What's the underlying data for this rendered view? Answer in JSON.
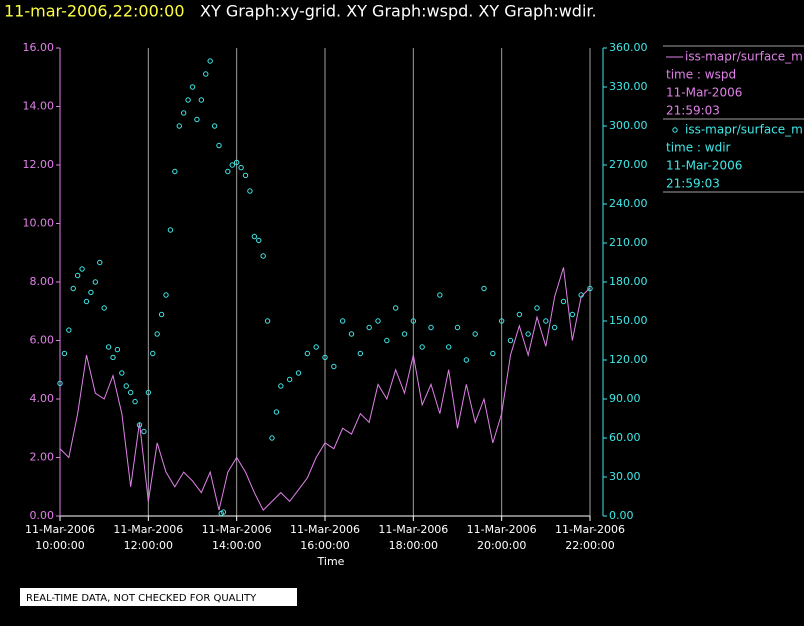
{
  "chart_data": {
    "type": "line-scatter",
    "title": "11-mar-2006,22:00:00",
    "subtitle": "XY Graph:xy-grid.  XY Graph:wspd.  XY Graph:wdir.",
    "xlabel": "Time",
    "note": "REAL-TIME DATA, NOT CHECKED FOR QUALITY",
    "xlim": [
      10,
      22
    ],
    "xticks": [
      {
        "value": 10,
        "label": "11-Mar-2006 10:00:00"
      },
      {
        "value": 12,
        "label": "11-Mar-2006 12:00:00"
      },
      {
        "value": 14,
        "label": "11-Mar-2006 14:00:00"
      },
      {
        "value": 16,
        "label": "11-Mar-2006 16:00:00"
      },
      {
        "value": 18,
        "label": "11-Mar-2006 18:00:00"
      },
      {
        "value": 20,
        "label": "11-Mar-2006 20:00:00"
      },
      {
        "value": 22,
        "label": "11-Mar-2006 22:00:00"
      }
    ],
    "ylim": [
      0,
      16
    ],
    "yticks": [
      {
        "value": 0,
        "label": "0.00"
      },
      {
        "value": 2,
        "label": "2.00"
      },
      {
        "value": 4,
        "label": "4.00"
      },
      {
        "value": 6,
        "label": "6.00"
      },
      {
        "value": 8,
        "label": "8.00"
      },
      {
        "value": 10,
        "label": "10.00"
      },
      {
        "value": 12,
        "label": "12.00"
      },
      {
        "value": 14,
        "label": "14.00"
      },
      {
        "value": 16,
        "label": "16.00"
      }
    ],
    "y2lim": [
      0,
      360
    ],
    "y2ticks": [
      {
        "value": 0,
        "label": "0.00"
      },
      {
        "value": 30,
        "label": "30.00"
      },
      {
        "value": 60,
        "label": "60.00"
      },
      {
        "value": 90,
        "label": "90.00"
      },
      {
        "value": 120,
        "label": "120.00"
      },
      {
        "value": 150,
        "label": "150.00"
      },
      {
        "value": 180,
        "label": "180.00"
      },
      {
        "value": 210,
        "label": "210.00"
      },
      {
        "value": 240,
        "label": "240.00"
      },
      {
        "value": 270,
        "label": "270.00"
      },
      {
        "value": 300,
        "label": "300.00"
      },
      {
        "value": 330,
        "label": "330.00"
      },
      {
        "value": 360,
        "label": "360.00"
      }
    ],
    "grid": true,
    "series": [
      {
        "name": "iss-mapr/surface_m",
        "label": "time : wspd",
        "date": "11-Mar-2006",
        "time": "21:59:03",
        "color": "#e080e8",
        "kind": "line",
        "axis": "y",
        "x": [
          10.0,
          10.2,
          10.4,
          10.6,
          10.8,
          11.0,
          11.2,
          11.4,
          11.6,
          11.8,
          12.0,
          12.2,
          12.4,
          12.6,
          12.8,
          13.0,
          13.2,
          13.4,
          13.6,
          13.8,
          14.0,
          14.2,
          14.4,
          14.6,
          14.8,
          15.0,
          15.2,
          15.4,
          15.6,
          15.8,
          16.0,
          16.2,
          16.4,
          16.6,
          16.8,
          17.0,
          17.2,
          17.4,
          17.6,
          17.8,
          18.0,
          18.2,
          18.4,
          18.6,
          18.8,
          19.0,
          19.2,
          19.4,
          19.6,
          19.8,
          20.0,
          20.2,
          20.4,
          20.6,
          20.8,
          21.0,
          21.2,
          21.4,
          21.6,
          21.8,
          22.0
        ],
        "values": [
          2.3,
          2.0,
          3.5,
          5.5,
          4.2,
          4.0,
          4.8,
          3.5,
          1.0,
          3.2,
          0.5,
          2.5,
          1.5,
          1.0,
          1.5,
          1.2,
          0.8,
          1.5,
          0.2,
          1.5,
          2.0,
          1.5,
          0.8,
          0.2,
          0.5,
          0.8,
          0.5,
          0.9,
          1.3,
          2.0,
          2.5,
          2.3,
          3.0,
          2.8,
          3.5,
          3.2,
          4.5,
          4.0,
          5.0,
          4.2,
          5.5,
          3.8,
          4.5,
          3.5,
          5.0,
          3.0,
          4.5,
          3.2,
          4.0,
          2.5,
          3.5,
          5.5,
          6.5,
          5.5,
          6.8,
          5.8,
          7.5,
          8.5,
          6.0,
          7.5,
          7.8
        ]
      },
      {
        "name": "iss-mapr/surface_m",
        "label": "time : wdir",
        "date": "11-Mar-2006",
        "time": "21:59:03",
        "color": "#40e8e8",
        "kind": "scatter",
        "axis": "y2",
        "x": [
          10.0,
          10.1,
          10.2,
          10.3,
          10.4,
          10.5,
          10.6,
          10.7,
          10.8,
          10.9,
          11.0,
          11.1,
          11.2,
          11.3,
          11.4,
          11.5,
          11.6,
          11.7,
          11.8,
          11.9,
          12.0,
          12.1,
          12.2,
          12.3,
          12.4,
          12.5,
          12.6,
          12.7,
          12.8,
          12.9,
          13.0,
          13.1,
          13.2,
          13.3,
          13.4,
          13.5,
          13.6,
          13.65,
          13.7,
          13.8,
          13.9,
          14.0,
          14.1,
          14.2,
          14.3,
          14.4,
          14.5,
          14.6,
          14.7,
          14.8,
          14.9,
          15.0,
          15.2,
          15.4,
          15.6,
          15.8,
          16.0,
          16.2,
          16.4,
          16.6,
          16.8,
          17.0,
          17.2,
          17.4,
          17.6,
          17.8,
          18.0,
          18.2,
          18.4,
          18.6,
          18.8,
          19.0,
          19.2,
          19.4,
          19.6,
          19.8,
          20.0,
          20.2,
          20.4,
          20.6,
          20.8,
          21.0,
          21.2,
          21.4,
          21.6,
          21.8,
          22.0
        ],
        "values": [
          102,
          125,
          143,
          175,
          185,
          190,
          165,
          172,
          180,
          195,
          160,
          130,
          122,
          128,
          110,
          100,
          95,
          88,
          70,
          65,
          95,
          125,
          140,
          155,
          170,
          220,
          265,
          300,
          310,
          320,
          330,
          305,
          320,
          340,
          350,
          300,
          285,
          2,
          3,
          265,
          270,
          272,
          268,
          262,
          250,
          215,
          212,
          200,
          150,
          60,
          80,
          100,
          105,
          110,
          125,
          130,
          122,
          115,
          150,
          140,
          125,
          145,
          150,
          135,
          160,
          140,
          150,
          130,
          145,
          170,
          130,
          145,
          120,
          140,
          175,
          125,
          150,
          135,
          155,
          140,
          160,
          150,
          145,
          165,
          155,
          170,
          175
        ]
      }
    ]
  }
}
